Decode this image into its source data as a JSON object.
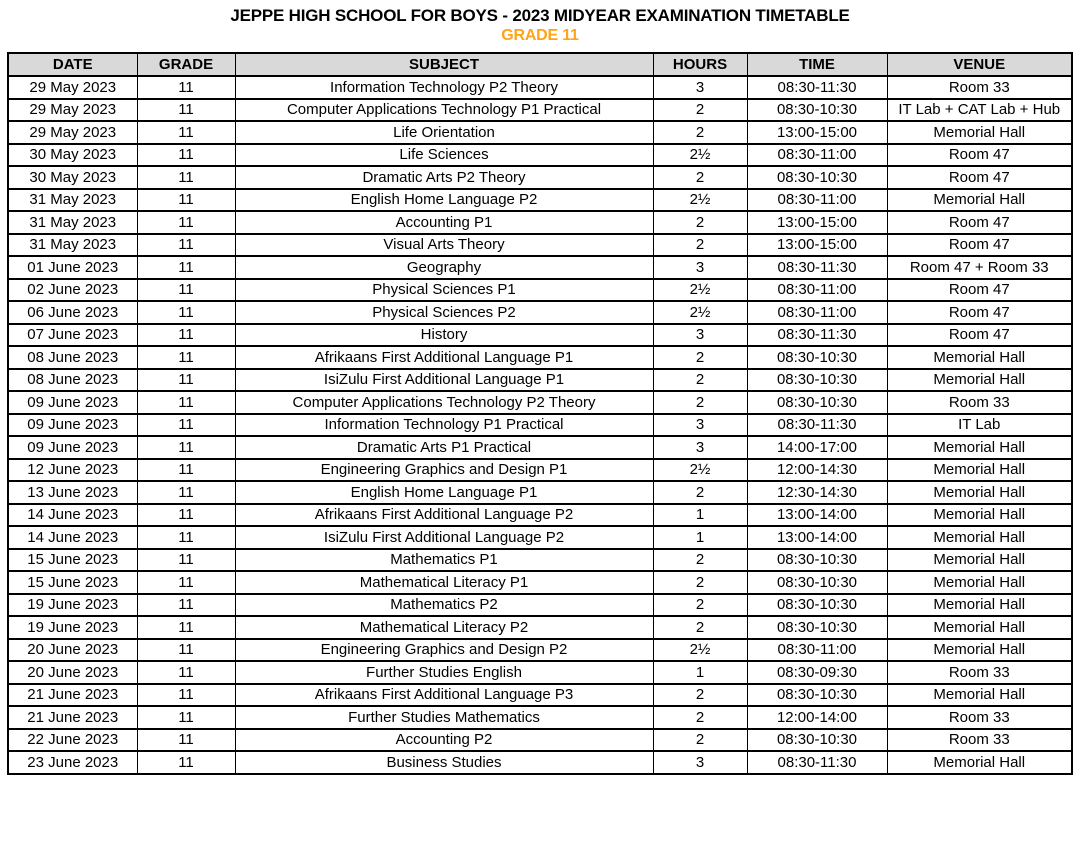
{
  "title": "JEPPE HIGH SCHOOL FOR BOYS - 2023 MIDYEAR EXAMINATION TIMETABLE",
  "subtitle": "GRADE 11",
  "colors": {
    "subtitle_orange": "#FFA418",
    "header_background": "#D9D9D9",
    "border_black": "#000000"
  },
  "columns": [
    "DATE",
    "GRADE",
    "SUBJECT",
    "HOURS",
    "TIME",
    "VENUE"
  ],
  "rows": [
    [
      "29 May 2023",
      "11",
      "Information Technology P2 Theory",
      "3",
      "08:30-11:30",
      "Room 33"
    ],
    [
      "29 May 2023",
      "11",
      "Computer Applications Technology P1 Practical",
      "2",
      "08:30-10:30",
      "IT Lab + CAT Lab + Hub"
    ],
    [
      "29 May 2023",
      "11",
      "Life Orientation",
      "2",
      "13:00-15:00",
      "Memorial Hall"
    ],
    [
      "30 May 2023",
      "11",
      "Life Sciences",
      "2½",
      "08:30-11:00",
      "Room 47"
    ],
    [
      "30 May 2023",
      "11",
      "Dramatic Arts P2 Theory",
      "2",
      "08:30-10:30",
      "Room 47"
    ],
    [
      "31 May 2023",
      "11",
      "English Home Language P2",
      "2½",
      "08:30-11:00",
      "Memorial Hall"
    ],
    [
      "31 May 2023",
      "11",
      "Accounting P1",
      "2",
      "13:00-15:00",
      "Room 47"
    ],
    [
      "31 May 2023",
      "11",
      "Visual Arts Theory",
      "2",
      "13:00-15:00",
      "Room 47"
    ],
    [
      "01 June 2023",
      "11",
      "Geography",
      "3",
      "08:30-11:30",
      "Room 47 + Room 33"
    ],
    [
      "02 June 2023",
      "11",
      "Physical Sciences P1",
      "2½",
      "08:30-11:00",
      "Room 47"
    ],
    [
      "06 June 2023",
      "11",
      "Physical Sciences P2",
      "2½",
      "08:30-11:00",
      "Room 47"
    ],
    [
      "07 June 2023",
      "11",
      "History",
      "3",
      "08:30-11:30",
      "Room 47"
    ],
    [
      "08 June 2023",
      "11",
      "Afrikaans First Additional Language P1",
      "2",
      "08:30-10:30",
      "Memorial Hall"
    ],
    [
      "08 June 2023",
      "11",
      "IsiZulu First Additional Language P1",
      "2",
      "08:30-10:30",
      "Memorial Hall"
    ],
    [
      "09 June 2023",
      "11",
      "Computer Applications Technology P2 Theory",
      "2",
      "08:30-10:30",
      "Room 33"
    ],
    [
      "09 June 2023",
      "11",
      "Information Technology P1 Practical",
      "3",
      "08:30-11:30",
      "IT Lab"
    ],
    [
      "09 June 2023",
      "11",
      "Dramatic Arts P1 Practical",
      "3",
      "14:00-17:00",
      "Memorial Hall"
    ],
    [
      "12 June 2023",
      "11",
      "Engineering Graphics and Design P1",
      "2½",
      "12:00-14:30",
      "Memorial Hall"
    ],
    [
      "13 June 2023",
      "11",
      "English Home Language P1",
      "2",
      "12:30-14:30",
      "Memorial Hall"
    ],
    [
      "14 June 2023",
      "11",
      "Afrikaans First Additional Language P2",
      "1",
      "13:00-14:00",
      "Memorial Hall"
    ],
    [
      "14 June 2023",
      "11",
      "IsiZulu First Additional Language P2",
      "1",
      "13:00-14:00",
      "Memorial Hall"
    ],
    [
      "15 June 2023",
      "11",
      "Mathematics P1",
      "2",
      "08:30-10:30",
      "Memorial Hall"
    ],
    [
      "15 June 2023",
      "11",
      "Mathematical Literacy P1",
      "2",
      "08:30-10:30",
      "Memorial Hall"
    ],
    [
      "19 June 2023",
      "11",
      "Mathematics P2",
      "2",
      "08:30-10:30",
      "Memorial Hall"
    ],
    [
      "19 June 2023",
      "11",
      "Mathematical Literacy P2",
      "2",
      "08:30-10:30",
      "Memorial Hall"
    ],
    [
      "20 June 2023",
      "11",
      "Engineering Graphics and Design P2",
      "2½",
      "08:30-11:00",
      "Memorial Hall"
    ],
    [
      "20 June 2023",
      "11",
      "Further Studies English",
      "1",
      "08:30-09:30",
      "Room 33"
    ],
    [
      "21 June 2023",
      "11",
      "Afrikaans First Additional Language P3",
      "2",
      "08:30-10:30",
      "Memorial Hall"
    ],
    [
      "21 June 2023",
      "11",
      "Further Studies Mathematics",
      "2",
      "12:00-14:00",
      "Room 33"
    ],
    [
      "22 June 2023",
      "11",
      "Accounting P2",
      "2",
      "08:30-10:30",
      "Room 33"
    ],
    [
      "23 June 2023",
      "11",
      "Business Studies",
      "3",
      "08:30-11:30",
      "Memorial Hall"
    ]
  ]
}
